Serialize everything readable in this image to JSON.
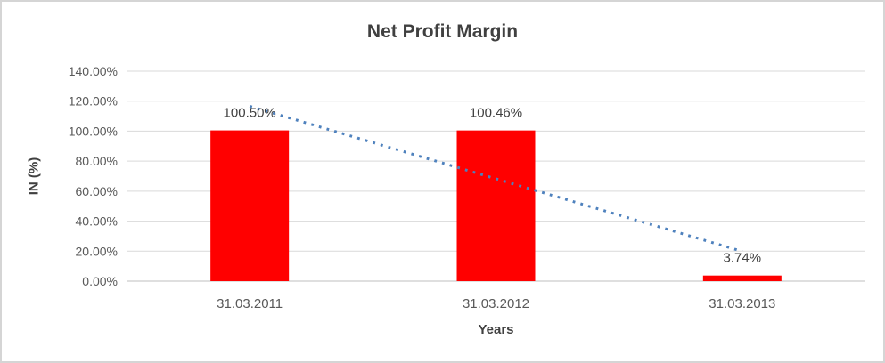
{
  "chart_data": {
    "type": "bar",
    "title": "Net Profit Margin",
    "x_axis": {
      "title": "Years",
      "categories": [
        "31.03.2011",
        "31.03.2012",
        "31.03.2013"
      ]
    },
    "y_axis": {
      "title": "IN (%)",
      "min": 0,
      "max": 140,
      "step": 20,
      "tick_labels": [
        "0.00%",
        "20.00%",
        "40.00%",
        "60.00%",
        "80.00%",
        "100.00%",
        "120.00%",
        "140.00%"
      ]
    },
    "series": [
      {
        "name": "Net Profit Margin",
        "values": [
          100.5,
          100.46,
          3.74
        ],
        "labels": [
          "100.50%",
          "100.46%",
          "3.74%"
        ],
        "color": "#FF0000"
      }
    ],
    "trendline": {
      "type": "linear",
      "style": "dotted",
      "color": "#4E81BD"
    },
    "legend": "none",
    "grid": true
  },
  "colors": {
    "background": "#FFFFFF",
    "frame_border": "#D5D5D5",
    "gridline": "#D9D9D9",
    "axis_line": "#BFBFBF",
    "title_text": "#404040",
    "tick_text": "#595959"
  }
}
